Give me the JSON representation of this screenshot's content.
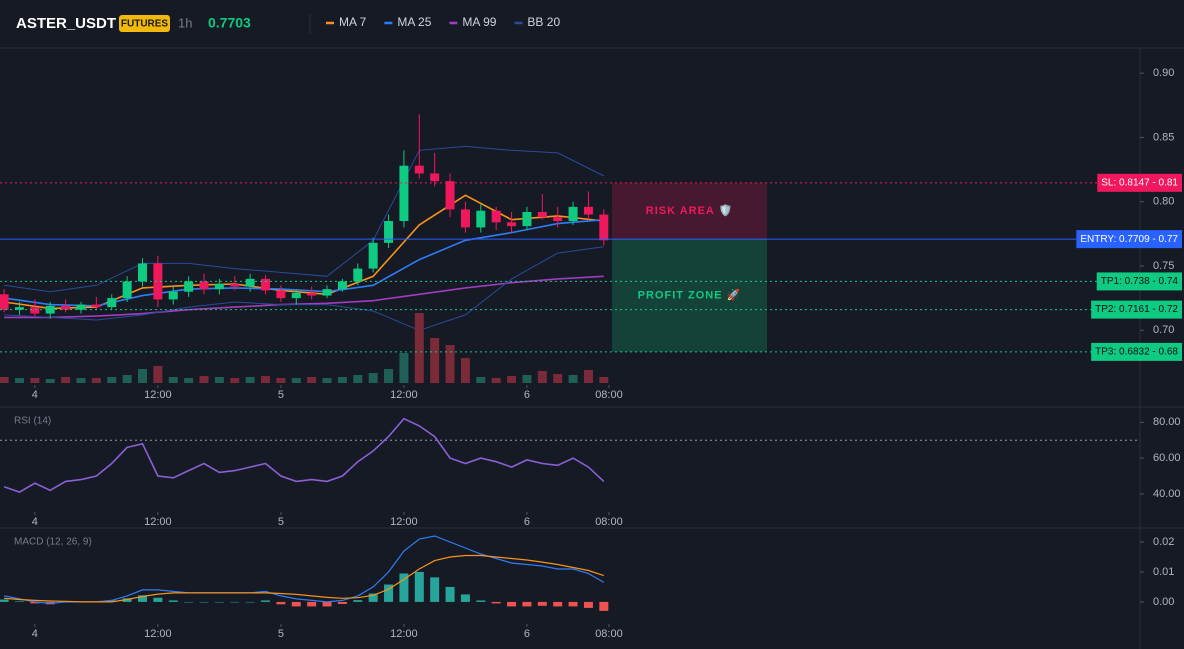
{
  "chart_data": [
    {
      "type": "candlestick",
      "title": "ASTER_USDT",
      "badge": "FUTURES",
      "interval": "1h",
      "last_price": 0.7703,
      "up_color": "#0ecb81",
      "down_color": "#f0185c",
      "volume_up_color": "#1f5f56",
      "volume_down_color": "#7a2a38",
      "x": [
        -3,
        -1.5,
        0,
        1.5,
        3,
        4.5,
        6,
        7.5,
        9,
        10.5,
        12,
        13.5,
        15,
        16.5,
        18,
        19.5,
        21,
        22.5,
        24,
        25.5,
        27,
        28.5,
        30,
        31.5,
        33,
        34.5,
        36,
        37.5,
        39,
        40.5,
        42,
        43.5,
        45,
        46.5,
        48,
        49.5,
        51,
        52.5,
        54,
        55.5
      ],
      "open": [
        0.728,
        0.716,
        0.718,
        0.713,
        0.719,
        0.716,
        0.72,
        0.718,
        0.725,
        0.738,
        0.752,
        0.724,
        0.73,
        0.738,
        0.732,
        0.736,
        0.734,
        0.74,
        0.731,
        0.725,
        0.729,
        0.727,
        0.732,
        0.738,
        0.748,
        0.768,
        0.785,
        0.828,
        0.822,
        0.816,
        0.794,
        0.78,
        0.793,
        0.784,
        0.781,
        0.792,
        0.788,
        0.785,
        0.796,
        0.79
      ],
      "high": [
        0.732,
        0.722,
        0.724,
        0.722,
        0.724,
        0.722,
        0.726,
        0.728,
        0.742,
        0.756,
        0.758,
        0.734,
        0.742,
        0.744,
        0.74,
        0.742,
        0.744,
        0.743,
        0.735,
        0.732,
        0.734,
        0.735,
        0.74,
        0.752,
        0.772,
        0.79,
        0.84,
        0.868,
        0.838,
        0.822,
        0.8,
        0.798,
        0.796,
        0.792,
        0.796,
        0.806,
        0.796,
        0.8,
        0.808,
        0.794
      ],
      "low": [
        0.714,
        0.712,
        0.711,
        0.709,
        0.714,
        0.713,
        0.716,
        0.716,
        0.722,
        0.734,
        0.718,
        0.72,
        0.726,
        0.728,
        0.728,
        0.731,
        0.73,
        0.728,
        0.722,
        0.72,
        0.724,
        0.725,
        0.73,
        0.735,
        0.745,
        0.764,
        0.78,
        0.818,
        0.812,
        0.788,
        0.776,
        0.776,
        0.778,
        0.776,
        0.778,
        0.786,
        0.78,
        0.782,
        0.786,
        0.766
      ],
      "close": [
        0.716,
        0.718,
        0.713,
        0.719,
        0.716,
        0.72,
        0.718,
        0.725,
        0.738,
        0.752,
        0.724,
        0.73,
        0.738,
        0.732,
        0.736,
        0.734,
        0.74,
        0.731,
        0.725,
        0.729,
        0.727,
        0.732,
        0.738,
        0.748,
        0.768,
        0.785,
        0.828,
        0.822,
        0.816,
        0.794,
        0.78,
        0.793,
        0.784,
        0.781,
        0.792,
        0.788,
        0.785,
        0.796,
        0.79,
        0.77
      ],
      "volume": [
        6,
        5,
        5,
        4,
        6,
        5,
        5,
        6,
        8,
        14,
        17,
        6,
        5,
        7,
        6,
        5,
        6,
        7,
        5,
        5,
        6,
        5,
        6,
        8,
        10,
        14,
        30,
        70,
        45,
        38,
        25,
        6,
        5,
        7,
        8,
        12,
        9,
        8,
        13,
        6
      ],
      "vlim": [
        0,
        100
      ],
      "series": [
        {
          "name": "MA 7",
          "color": "#f7931a",
          "x": [
            -3,
            1.5,
            6,
            10.5,
            15,
            19.5,
            24,
            28.5,
            33,
            37.5,
            42,
            46.5,
            51,
            55.5
          ],
          "values": [
            0.722,
            0.717,
            0.718,
            0.733,
            0.735,
            0.736,
            0.731,
            0.728,
            0.742,
            0.782,
            0.805,
            0.786,
            0.789,
            0.785
          ]
        },
        {
          "name": "MA 25",
          "color": "#2f7df6",
          "x": [
            -3,
            1.5,
            6,
            10.5,
            15,
            19.5,
            24,
            28.5,
            33,
            37.5,
            42,
            46.5,
            51,
            55.5
          ],
          "values": [
            0.725,
            0.72,
            0.719,
            0.727,
            0.732,
            0.733,
            0.732,
            0.73,
            0.735,
            0.755,
            0.77,
            0.776,
            0.783,
            0.786
          ]
        },
        {
          "name": "MA 99",
          "color": "#a23cc0",
          "x": [
            -3,
            1.5,
            6,
            10.5,
            15,
            19.5,
            24,
            28.5,
            33,
            37.5,
            42,
            46.5,
            51,
            55.5
          ],
          "values": [
            0.71,
            0.71,
            0.711,
            0.713,
            0.716,
            0.718,
            0.72,
            0.721,
            0.723,
            0.728,
            0.733,
            0.737,
            0.74,
            0.742
          ]
        },
        {
          "name": "BB 20",
          "color": "#2a4a9a",
          "x": [
            -3,
            1.5,
            6,
            10.5,
            15,
            19.5,
            24,
            28.5,
            33,
            37.5,
            42,
            46.5,
            51,
            55.5
          ],
          "upper": [
            0.735,
            0.73,
            0.735,
            0.752,
            0.752,
            0.748,
            0.745,
            0.742,
            0.77,
            0.84,
            0.843,
            0.84,
            0.838,
            0.82
          ],
          "lower": [
            0.712,
            0.71,
            0.708,
            0.712,
            0.718,
            0.722,
            0.72,
            0.72,
            0.715,
            0.7,
            0.712,
            0.74,
            0.76,
            0.765
          ]
        }
      ],
      "levels": [
        {
          "label": "SL: 0.8147 - 0.81",
          "value": 0.8147,
          "color": "#f0185c",
          "style": "dotted"
        },
        {
          "label": "ENTRY: 0.7709 - 0.77",
          "value": 0.7709,
          "color": "#2962ff",
          "style": "solid"
        },
        {
          "label": "TP1: 0.738 - 0.74",
          "value": 0.738,
          "color": "#0ecb81",
          "style": "dotted"
        },
        {
          "label": "TP2: 0.7161 - 0.72",
          "value": 0.7161,
          "color": "#0ecb81",
          "style": "dotted"
        },
        {
          "label": "TP3: 0.6832 - 0.68",
          "value": 0.6832,
          "color": "#0ecb81",
          "style": "dotted"
        }
      ],
      "zones": [
        {
          "label": "RISK AREA 🛡️",
          "from": 0.8147,
          "to": 0.7709,
          "color": "#f0185c"
        },
        {
          "label": "PROFIT ZONE 🚀",
          "from": 0.7709,
          "to": 0.6832,
          "color": "#0ecb81"
        }
      ],
      "xlim": [
        -3.4,
        107.8
      ],
      "xticks": [
        {
          "value": 0,
          "label": "4"
        },
        {
          "value": 12,
          "label": "12:00"
        },
        {
          "value": 24,
          "label": "5"
        },
        {
          "value": 36,
          "label": "12:00"
        },
        {
          "value": 48,
          "label": "6"
        },
        {
          "value": 56,
          "label": "08:00"
        }
      ],
      "ylim": [
        0.659,
        0.918
      ],
      "yticks": [
        {
          "value": 0.9,
          "label": "0.90"
        },
        0.85,
        {
          "value": 0.8,
          "label": "0.80"
        },
        0.75,
        {
          "value": 0.7,
          "label": "0.70"
        }
      ]
    },
    {
      "type": "line",
      "title": "RSI (14)",
      "level": 70,
      "x": [
        -3,
        -1.5,
        0,
        1.5,
        3,
        4.5,
        6,
        7.5,
        9,
        10.5,
        12,
        13.5,
        15,
        16.5,
        18,
        19.5,
        21,
        22.5,
        24,
        25.5,
        27,
        28.5,
        30,
        31.5,
        33,
        34.5,
        36,
        37.5,
        39,
        40.5,
        42,
        43.5,
        45,
        46.5,
        48,
        49.5,
        51,
        52.5,
        54,
        55.5
      ],
      "series": [
        {
          "color": "#8c5fd6",
          "values": [
            44,
            41,
            46,
            42,
            47,
            48,
            50,
            57,
            66,
            68,
            50,
            49,
            53,
            57,
            52,
            53,
            55,
            57,
            50,
            47,
            48,
            47,
            50,
            58,
            64,
            72,
            82,
            78,
            72,
            60,
            57,
            60,
            58,
            55,
            59,
            57,
            56,
            60,
            55,
            47
          ]
        }
      ],
      "xlim": [
        -3.4,
        107.8
      ],
      "xticks": [
        {
          "value": 0,
          "label": "4"
        },
        {
          "value": 12,
          "label": "12:00"
        },
        {
          "value": 24,
          "label": "5"
        },
        {
          "value": 36,
          "label": "12:00"
        },
        {
          "value": 48,
          "label": "6"
        },
        {
          "value": 56,
          "label": "08:00"
        }
      ],
      "ylim": [
        31,
        88
      ],
      "yticks": [
        {
          "value": 80,
          "label": "80.00"
        },
        {
          "value": 60,
          "label": "60.00"
        },
        {
          "value": 40,
          "label": "40.00"
        }
      ]
    },
    {
      "type": "macd",
      "title": "MACD (12, 26, 9)",
      "up_color": "#26a69a",
      "down_color": "#ef5350",
      "x": [
        -3,
        -1.5,
        0,
        1.5,
        3,
        4.5,
        6,
        7.5,
        9,
        10.5,
        12,
        13.5,
        15,
        16.5,
        18,
        19.5,
        21,
        22.5,
        24,
        25.5,
        27,
        28.5,
        30,
        31.5,
        33,
        34.5,
        36,
        37.5,
        39,
        40.5,
        42,
        43.5,
        45,
        46.5,
        48,
        49.5,
        51,
        52.5,
        54,
        55.5
      ],
      "histogram": [
        0.0008,
        0.0002,
        -0.0005,
        -0.0008,
        -0.0002,
        0,
        0,
        0.0005,
        0.0012,
        0.0022,
        0.0014,
        0.0005,
        0,
        0,
        0,
        0,
        0,
        0.0005,
        -0.0008,
        -0.0015,
        -0.0015,
        -0.0015,
        -0.0007,
        0.0006,
        0.0028,
        0.0058,
        0.0095,
        0.01,
        0.0082,
        0.005,
        0.0025,
        0.0005,
        -0.0005,
        -0.0015,
        -0.0015,
        -0.0013,
        -0.0015,
        -0.0015,
        -0.002,
        -0.003
      ],
      "series": [
        {
          "color": "#2f7df6",
          "values": [
            0.002,
            0.001,
            0,
            -0.0005,
            0,
            0,
            0,
            0.0005,
            0.002,
            0.004,
            0.004,
            0.0035,
            0.003,
            0.003,
            0.003,
            0.003,
            0.003,
            0.0035,
            0.002,
            0.001,
            0.0005,
            0,
            0.0005,
            0.002,
            0.005,
            0.01,
            0.017,
            0.021,
            0.022,
            0.02,
            0.018,
            0.016,
            0.0145,
            0.013,
            0.0125,
            0.012,
            0.011,
            0.011,
            0.0095,
            0.0065
          ]
        },
        {
          "color": "#f7931a",
          "values": [
            0.0012,
            0.0008,
            0.0005,
            0.0003,
            0.0002,
            0,
            0,
            0,
            0.0008,
            0.0018,
            0.0026,
            0.003,
            0.003,
            0.003,
            0.003,
            0.003,
            0.003,
            0.003,
            0.0028,
            0.0025,
            0.002,
            0.0015,
            0.0012,
            0.0014,
            0.0022,
            0.0042,
            0.0075,
            0.011,
            0.0138,
            0.015,
            0.0155,
            0.0155,
            0.015,
            0.0145,
            0.014,
            0.0133,
            0.0125,
            0.0115,
            0.0105,
            0.0088
          ]
        }
      ],
      "xlim": [
        -3.4,
        107.8
      ],
      "xticks": [
        {
          "value": 0,
          "label": "4"
        },
        {
          "value": 12,
          "label": "12:00"
        },
        {
          "value": 24,
          "label": "5"
        },
        {
          "value": 36,
          "label": "12:00"
        },
        {
          "value": 48,
          "label": "6"
        },
        {
          "value": 56,
          "label": "08:00"
        }
      ],
      "ylim": [
        -0.0067,
        0.024
      ],
      "yticks": [
        0.02,
        0.01,
        {
          "value": 0,
          "label": "0.00"
        }
      ]
    }
  ]
}
